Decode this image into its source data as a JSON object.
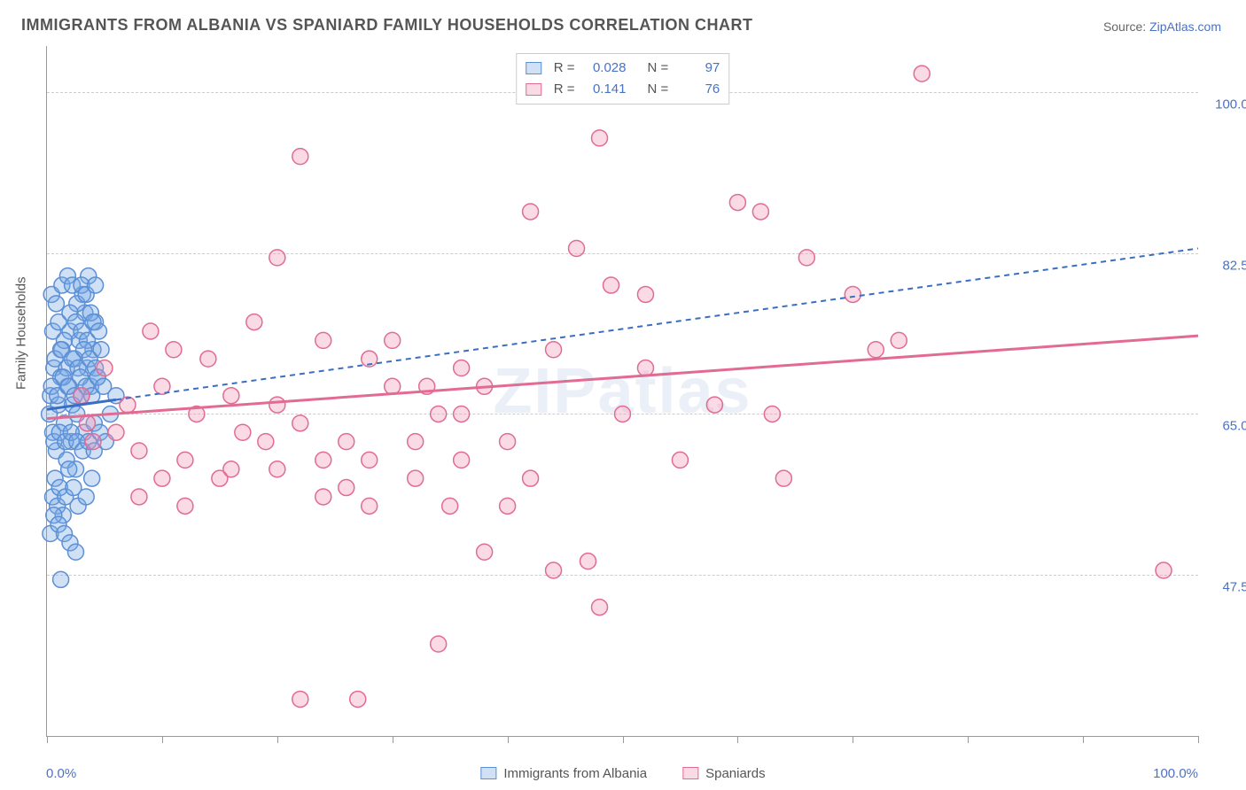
{
  "title": "IMMIGRANTS FROM ALBANIA VS SPANIARD FAMILY HOUSEHOLDS CORRELATION CHART",
  "source_label": "Source: ",
  "source_name": "ZipAtlas.com",
  "ylabel": "Family Households",
  "watermark": "ZIPatlas",
  "chart": {
    "type": "scatter",
    "xlim": [
      0,
      100
    ],
    "ylim": [
      30,
      105
    ],
    "y_gridlines": [
      47.5,
      65.0,
      82.5,
      100.0
    ],
    "y_tick_labels": [
      "47.5%",
      "65.0%",
      "82.5%",
      "100.0%"
    ],
    "x_tick_positions": [
      0,
      10,
      20,
      30,
      40,
      50,
      60,
      70,
      80,
      90,
      100
    ],
    "x_axis_min_label": "0.0%",
    "x_axis_max_label": "100.0%",
    "background_color": "#ffffff",
    "grid_color": "#cccccc",
    "axis_color": "#999999",
    "tick_label_color": "#4a72c4",
    "marker_radius": 9,
    "marker_stroke_width": 1.5,
    "series": [
      {
        "name": "Immigrants from Albania",
        "fill": "rgba(120,170,230,0.35)",
        "stroke": "#5b8fd6",
        "r_value": "0.028",
        "n_value": "97",
        "trend": {
          "x1": 0,
          "y1": 65.5,
          "x2": 100,
          "y2": 83.0,
          "stroke": "#396ec4",
          "dash": "6 5",
          "width": 2,
          "solid_until_x": 6
        },
        "points": [
          [
            0.2,
            65
          ],
          [
            0.3,
            67
          ],
          [
            0.5,
            63
          ],
          [
            0.6,
            70
          ],
          [
            0.8,
            61
          ],
          [
            1.0,
            66
          ],
          [
            1.2,
            69
          ],
          [
            1.3,
            72
          ],
          [
            1.5,
            64
          ],
          [
            1.7,
            60
          ],
          [
            1.8,
            68
          ],
          [
            2.0,
            74
          ],
          [
            2.1,
            62
          ],
          [
            2.2,
            66
          ],
          [
            2.4,
            71
          ],
          [
            2.5,
            59
          ],
          [
            2.6,
            65
          ],
          [
            2.8,
            73
          ],
          [
            3.0,
            67
          ],
          [
            3.1,
            78
          ],
          [
            3.2,
            63
          ],
          [
            3.3,
            76
          ],
          [
            3.5,
            70
          ],
          [
            3.6,
            80
          ],
          [
            3.8,
            68
          ],
          [
            3.9,
            58
          ],
          [
            4.0,
            72
          ],
          [
            4.1,
            64
          ],
          [
            4.2,
            75
          ],
          [
            4.4,
            69
          ],
          [
            0.5,
            56
          ],
          [
            0.7,
            58
          ],
          [
            0.9,
            55
          ],
          [
            1.1,
            57
          ],
          [
            1.4,
            54
          ],
          [
            1.6,
            56
          ],
          [
            1.9,
            59
          ],
          [
            2.3,
            57
          ],
          [
            2.7,
            55
          ],
          [
            3.4,
            56
          ],
          [
            0.3,
            52
          ],
          [
            0.6,
            54
          ],
          [
            1.0,
            53
          ],
          [
            1.5,
            52
          ],
          [
            2.0,
            51
          ],
          [
            2.5,
            50
          ],
          [
            1.2,
            47
          ],
          [
            0.4,
            78
          ],
          [
            0.8,
            77
          ],
          [
            1.3,
            79
          ],
          [
            1.8,
            80
          ],
          [
            2.2,
            79
          ],
          [
            2.6,
            77
          ],
          [
            3.0,
            79
          ],
          [
            3.4,
            78
          ],
          [
            3.8,
            76
          ],
          [
            4.2,
            79
          ],
          [
            0.5,
            74
          ],
          [
            1.0,
            75
          ],
          [
            1.5,
            73
          ],
          [
            2.0,
            76
          ],
          [
            2.5,
            75
          ],
          [
            3.0,
            74
          ],
          [
            3.5,
            73
          ],
          [
            4.0,
            75
          ],
          [
            4.5,
            74
          ],
          [
            0.7,
            71
          ],
          [
            1.2,
            72
          ],
          [
            1.7,
            70
          ],
          [
            2.2,
            71
          ],
          [
            2.7,
            70
          ],
          [
            3.2,
            72
          ],
          [
            3.7,
            71
          ],
          [
            4.2,
            70
          ],
          [
            4.7,
            72
          ],
          [
            0.4,
            68
          ],
          [
            0.9,
            67
          ],
          [
            1.4,
            69
          ],
          [
            1.9,
            68
          ],
          [
            2.4,
            67
          ],
          [
            2.9,
            69
          ],
          [
            3.4,
            68
          ],
          [
            3.9,
            67
          ],
          [
            4.4,
            69
          ],
          [
            4.9,
            68
          ],
          [
            0.6,
            62
          ],
          [
            1.1,
            63
          ],
          [
            1.6,
            62
          ],
          [
            2.1,
            63
          ],
          [
            2.6,
            62
          ],
          [
            3.1,
            61
          ],
          [
            3.6,
            62
          ],
          [
            4.1,
            61
          ],
          [
            4.6,
            63
          ],
          [
            5.1,
            62
          ],
          [
            5.5,
            65
          ],
          [
            6.0,
            67
          ]
        ]
      },
      {
        "name": "Spaniards",
        "fill": "rgba(240,150,180,0.35)",
        "stroke": "#e26b94",
        "r_value": "0.141",
        "n_value": "76",
        "trend": {
          "x1": 0,
          "y1": 64.5,
          "x2": 100,
          "y2": 73.5,
          "stroke": "#e26b94",
          "dash": "none",
          "width": 3
        },
        "points": [
          [
            3,
            67
          ],
          [
            3.5,
            64
          ],
          [
            4,
            62
          ],
          [
            5,
            70
          ],
          [
            6,
            63
          ],
          [
            7,
            66
          ],
          [
            8,
            61
          ],
          [
            9,
            74
          ],
          [
            10,
            68
          ],
          [
            11,
            72
          ],
          [
            12,
            60
          ],
          [
            13,
            65
          ],
          [
            14,
            71
          ],
          [
            15,
            58
          ],
          [
            16,
            67
          ],
          [
            17,
            63
          ],
          [
            18,
            75
          ],
          [
            19,
            62
          ],
          [
            8,
            56
          ],
          [
            12,
            55
          ],
          [
            16,
            59
          ],
          [
            20,
            66
          ],
          [
            22,
            64
          ],
          [
            24,
            73
          ],
          [
            26,
            62
          ],
          [
            28,
            55
          ],
          [
            30,
            68
          ],
          [
            20,
            82
          ],
          [
            22,
            93
          ],
          [
            24,
            60
          ],
          [
            26,
            57
          ],
          [
            28,
            71
          ],
          [
            30,
            73
          ],
          [
            22,
            34
          ],
          [
            27,
            34
          ],
          [
            33,
            68
          ],
          [
            34,
            40
          ],
          [
            35,
            55
          ],
          [
            36,
            60
          ],
          [
            38,
            50
          ],
          [
            40,
            62
          ],
          [
            42,
            87
          ],
          [
            44,
            72
          ],
          [
            46,
            83
          ],
          [
            47,
            49
          ],
          [
            48,
            95
          ],
          [
            49,
            79
          ],
          [
            50,
            65
          ],
          [
            52,
            78
          ],
          [
            44,
            48
          ],
          [
            48,
            44
          ],
          [
            60,
            88
          ],
          [
            62,
            87
          ],
          [
            64,
            58
          ],
          [
            66,
            82
          ],
          [
            70,
            78
          ],
          [
            72,
            72
          ],
          [
            74,
            73
          ],
          [
            76,
            102
          ],
          [
            63,
            65
          ],
          [
            52,
            70
          ],
          [
            55,
            60
          ],
          [
            58,
            66
          ],
          [
            36,
            65
          ],
          [
            38,
            68
          ],
          [
            40,
            55
          ],
          [
            42,
            58
          ],
          [
            32,
            62
          ],
          [
            34,
            65
          ],
          [
            36,
            70
          ],
          [
            97,
            48
          ],
          [
            20,
            59
          ],
          [
            24,
            56
          ],
          [
            28,
            60
          ],
          [
            32,
            58
          ],
          [
            10,
            58
          ]
        ]
      }
    ]
  },
  "bottom_legend": {
    "series1_label": "Immigrants from Albania",
    "series2_label": "Spaniards"
  },
  "top_legend": {
    "r_label": "R =",
    "n_label": "N ="
  }
}
